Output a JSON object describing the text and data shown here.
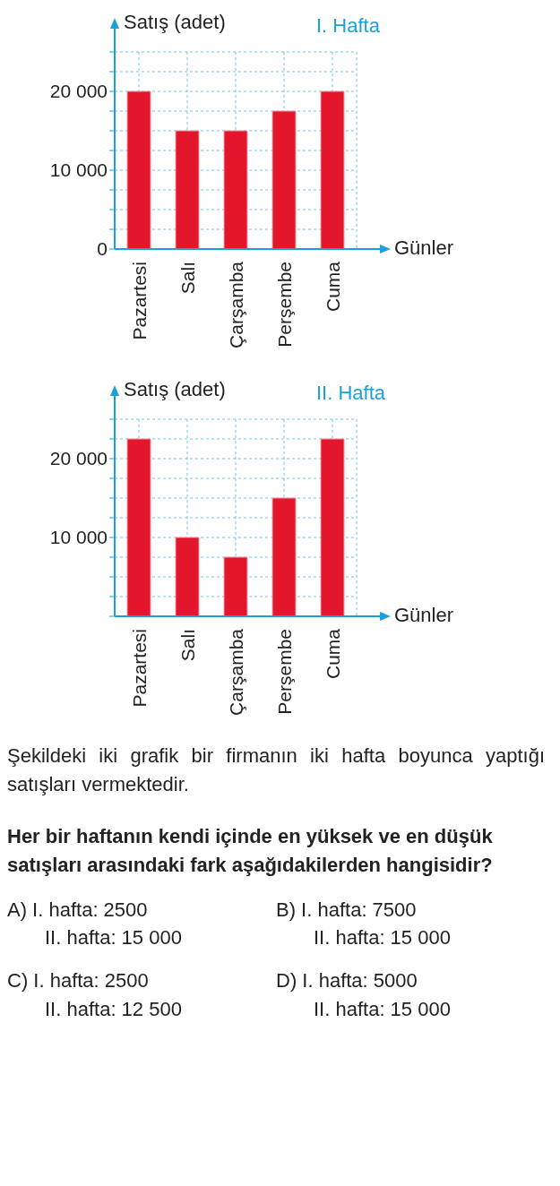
{
  "chart_data": [
    {
      "type": "bar",
      "title": "I. Hafta",
      "ylabel": "Satış (adet)",
      "xlabel": "Günler",
      "categories": [
        "Pazartesi",
        "Salı",
        "Çarşamba",
        "Perşembe",
        "Cuma"
      ],
      "values": [
        20000,
        15000,
        15000,
        17500,
        20000
      ],
      "color": "#e3162b",
      "ylim": [
        0,
        25000
      ],
      "yticks": [
        0,
        {
          "value": 2500,
          "label": null
        },
        {
          "value": 5000,
          "label": null
        },
        {
          "value": 7500,
          "label": null
        },
        {
          "value": 10000,
          "label": "10 000"
        },
        {
          "value": 12500,
          "label": null
        },
        {
          "value": 15000,
          "label": null
        },
        {
          "value": 17500,
          "label": null
        },
        {
          "value": 20000,
          "label": "20 000"
        },
        {
          "value": 22500,
          "label": null
        },
        {
          "value": 25000,
          "label": null
        }
      ],
      "grid": true
    },
    {
      "type": "bar",
      "title": "II. Hafta",
      "ylabel": "Satış (adet)",
      "xlabel": "Günler",
      "categories": [
        "Pazartesi",
        "Salı",
        "Çarşamba",
        "Perşembe",
        "Cuma"
      ],
      "values": [
        22500,
        10000,
        7500,
        15000,
        22500
      ],
      "color": "#e3162b",
      "ylim": [
        0,
        25000
      ],
      "yticks": [
        {
          "value": 0,
          "label": null
        },
        {
          "value": 2500,
          "label": null
        },
        {
          "value": 5000,
          "label": null
        },
        {
          "value": 7500,
          "label": null
        },
        {
          "value": 10000,
          "label": "10 000"
        },
        {
          "value": 12500,
          "label": null
        },
        {
          "value": 15000,
          "label": null
        },
        {
          "value": 17500,
          "label": null
        },
        {
          "value": 20000,
          "label": "20 000"
        },
        {
          "value": 22500,
          "label": null
        },
        {
          "value": 25000,
          "label": null
        }
      ],
      "grid": true
    },
    {
      "type": "other",
      "annotations": [
        "Şekildeki iki grafik bir firmanın iki hafta boyunca yaptığı satışları vermektedir.",
        "Her bir haftanın kendi içinde en yüksek ve en düşük satışları arasındaki fark aşağıdakilerden hangisidir?",
        "A) I. hafta: 2500",
        "II. hafta: 15 000",
        "B) I. hafta: 7500",
        "II. hafta: 15 000",
        "C) I. hafta: 2500",
        "II. hafta: 12 500",
        "D) I. hafta: 5000",
        "II. hafta: 15 000"
      ]
    }
  ]
}
